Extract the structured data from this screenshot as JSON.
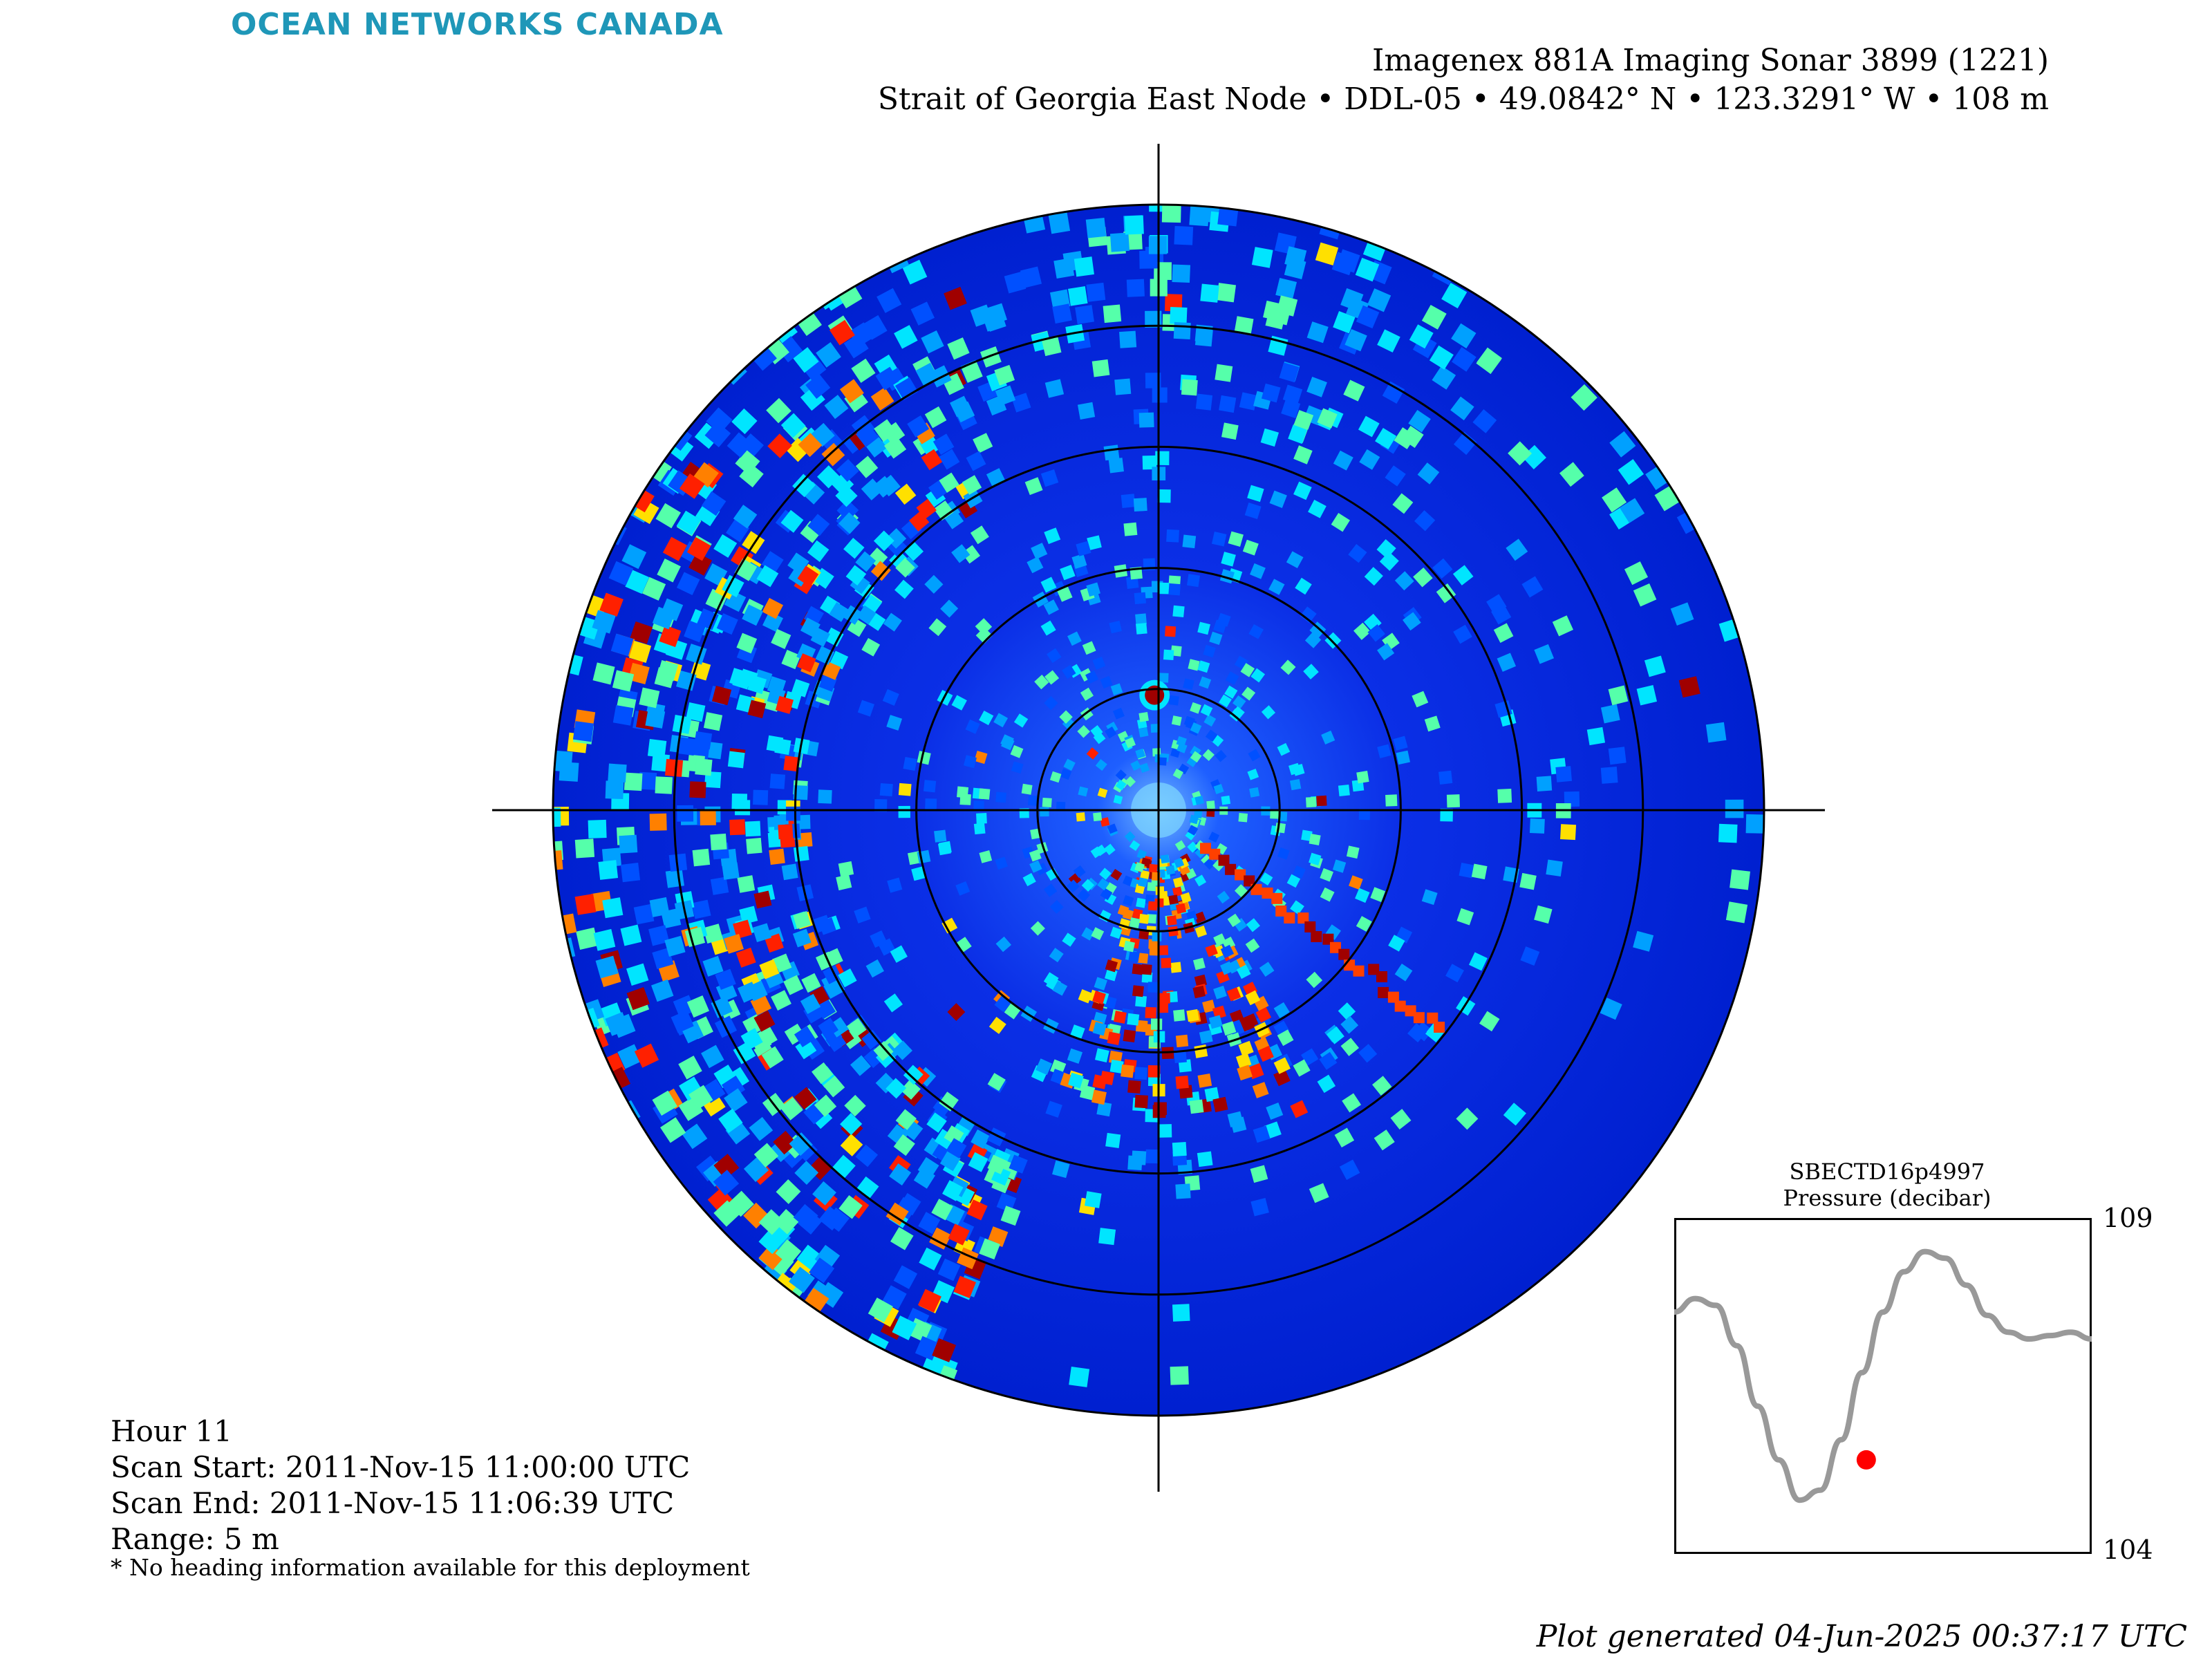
{
  "header": {
    "logo_text": "OCEAN NETWORKS CANADA",
    "title_line1": "Imagenex 881A Imaging Sonar 3899 (1221)",
    "title_line2": "Strait of Georgia East Node • DDL-05 • 49.0842° N • 123.3291° W • 108 m"
  },
  "scan_info": {
    "hour": "Hour 11",
    "scan_start": "Scan Start: 2011-Nov-15 11:00:00 UTC",
    "scan_end": "Scan End: 2011-Nov-15 11:06:39 UTC",
    "range": "Range: 5 m",
    "note": "* No heading information available for this deployment"
  },
  "footer": {
    "generated": "Plot generated 04-Jun-2025 00:37:17 UTC"
  },
  "colors": {
    "logo": "#1f97b8",
    "background_water": "#00008f",
    "trace": "#999999",
    "marker": "#ff0000"
  },
  "chart_data": [
    {
      "type": "heatmap",
      "subtype": "polar sonar intensity scan",
      "range_max_m": 5,
      "range_rings_m": [
        1,
        2,
        3,
        4,
        5
      ],
      "crosshair": true,
      "colormap": "jet",
      "features": [
        {
          "label": "strong-return-cluster-south",
          "bearing_deg_start": 150,
          "bearing_deg_end": 200,
          "range_m_start": 0.4,
          "range_m_end": 2.5
        },
        {
          "label": "strong-return-ray-southeast",
          "bearing_deg": 128,
          "range_m_start": 0.5,
          "range_m_end": 3.0
        },
        {
          "label": "bright-target-north",
          "bearing_deg": 358,
          "range_m": 0.95
        },
        {
          "label": "dense-returns-west-arc",
          "bearing_deg_start": 200,
          "bearing_deg_end": 330,
          "range_m_start": 2.9,
          "range_m_end": 5.0
        }
      ]
    },
    {
      "type": "line",
      "title_line1": "SBECTD16p4997",
      "title_line2": "Pressure (decibar)",
      "ylim": [
        104,
        109
      ],
      "yticks": [
        104,
        109
      ],
      "x_norm": [
        0,
        0.05,
        0.1,
        0.15,
        0.2,
        0.25,
        0.3,
        0.35,
        0.4,
        0.45,
        0.5,
        0.55,
        0.6,
        0.65,
        0.7,
        0.75,
        0.8,
        0.85,
        0.9,
        0.95,
        1
      ],
      "y": [
        107.6,
        107.8,
        107.7,
        107.1,
        106.2,
        105.4,
        104.8,
        104.95,
        105.7,
        106.7,
        107.6,
        108.2,
        108.5,
        108.4,
        108.0,
        107.55,
        107.3,
        107.2,
        107.25,
        107.3,
        107.2
      ],
      "current_marker": {
        "x_norm": 0.46,
        "y": 105.4
      }
    }
  ]
}
